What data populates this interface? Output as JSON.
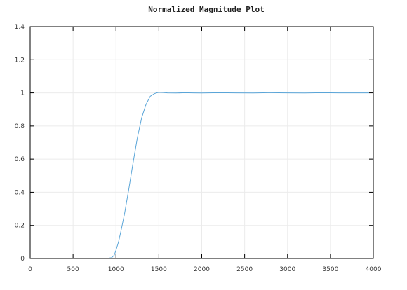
{
  "chart_data": {
    "type": "line",
    "title": "Normalized Magnitude Plot",
    "xlabel": "",
    "ylabel": "",
    "xlim": [
      0,
      4000
    ],
    "ylim": [
      0,
      1.4
    ],
    "x_ticks": [
      0,
      500,
      1000,
      1500,
      2000,
      2500,
      3000,
      3500,
      4000
    ],
    "x_tick_labels": [
      "0",
      "500",
      "1000",
      "1500",
      "2000",
      "2500",
      "3000",
      "3500",
      "4000"
    ],
    "y_ticks": [
      0,
      0.2,
      0.4,
      0.6,
      0.8,
      1,
      1.2,
      1.4
    ],
    "y_tick_labels": [
      "0",
      "0.2",
      "0.4",
      "0.6",
      "0.8",
      "1",
      "1.2",
      "1.4"
    ],
    "grid": true,
    "series": [
      {
        "color": "#5aa5d8",
        "x": [
          0,
          200,
          400,
          600,
          800,
          900,
          950,
          980,
          1000,
          1030,
          1060,
          1100,
          1150,
          1200,
          1250,
          1300,
          1350,
          1400,
          1450,
          1480,
          1500,
          1550,
          1600,
          1700,
          1800,
          1900,
          2000,
          2200,
          2400,
          2600,
          2800,
          3000,
          3200,
          3400,
          3600,
          3800,
          3950
        ],
        "y": [
          0,
          0,
          0,
          0,
          0,
          0.001,
          0.005,
          0.02,
          0.05,
          0.1,
          0.17,
          0.27,
          0.42,
          0.58,
          0.73,
          0.85,
          0.93,
          0.98,
          0.996,
          1.001,
          1.003,
          1.002,
          1.0,
          0.999,
          1.001,
          1.0,
          0.999,
          1.001,
          1.0,
          0.999,
          1.001,
          1.0,
          0.999,
          1.001,
          1.0,
          1.0,
          1.0
        ]
      }
    ]
  }
}
